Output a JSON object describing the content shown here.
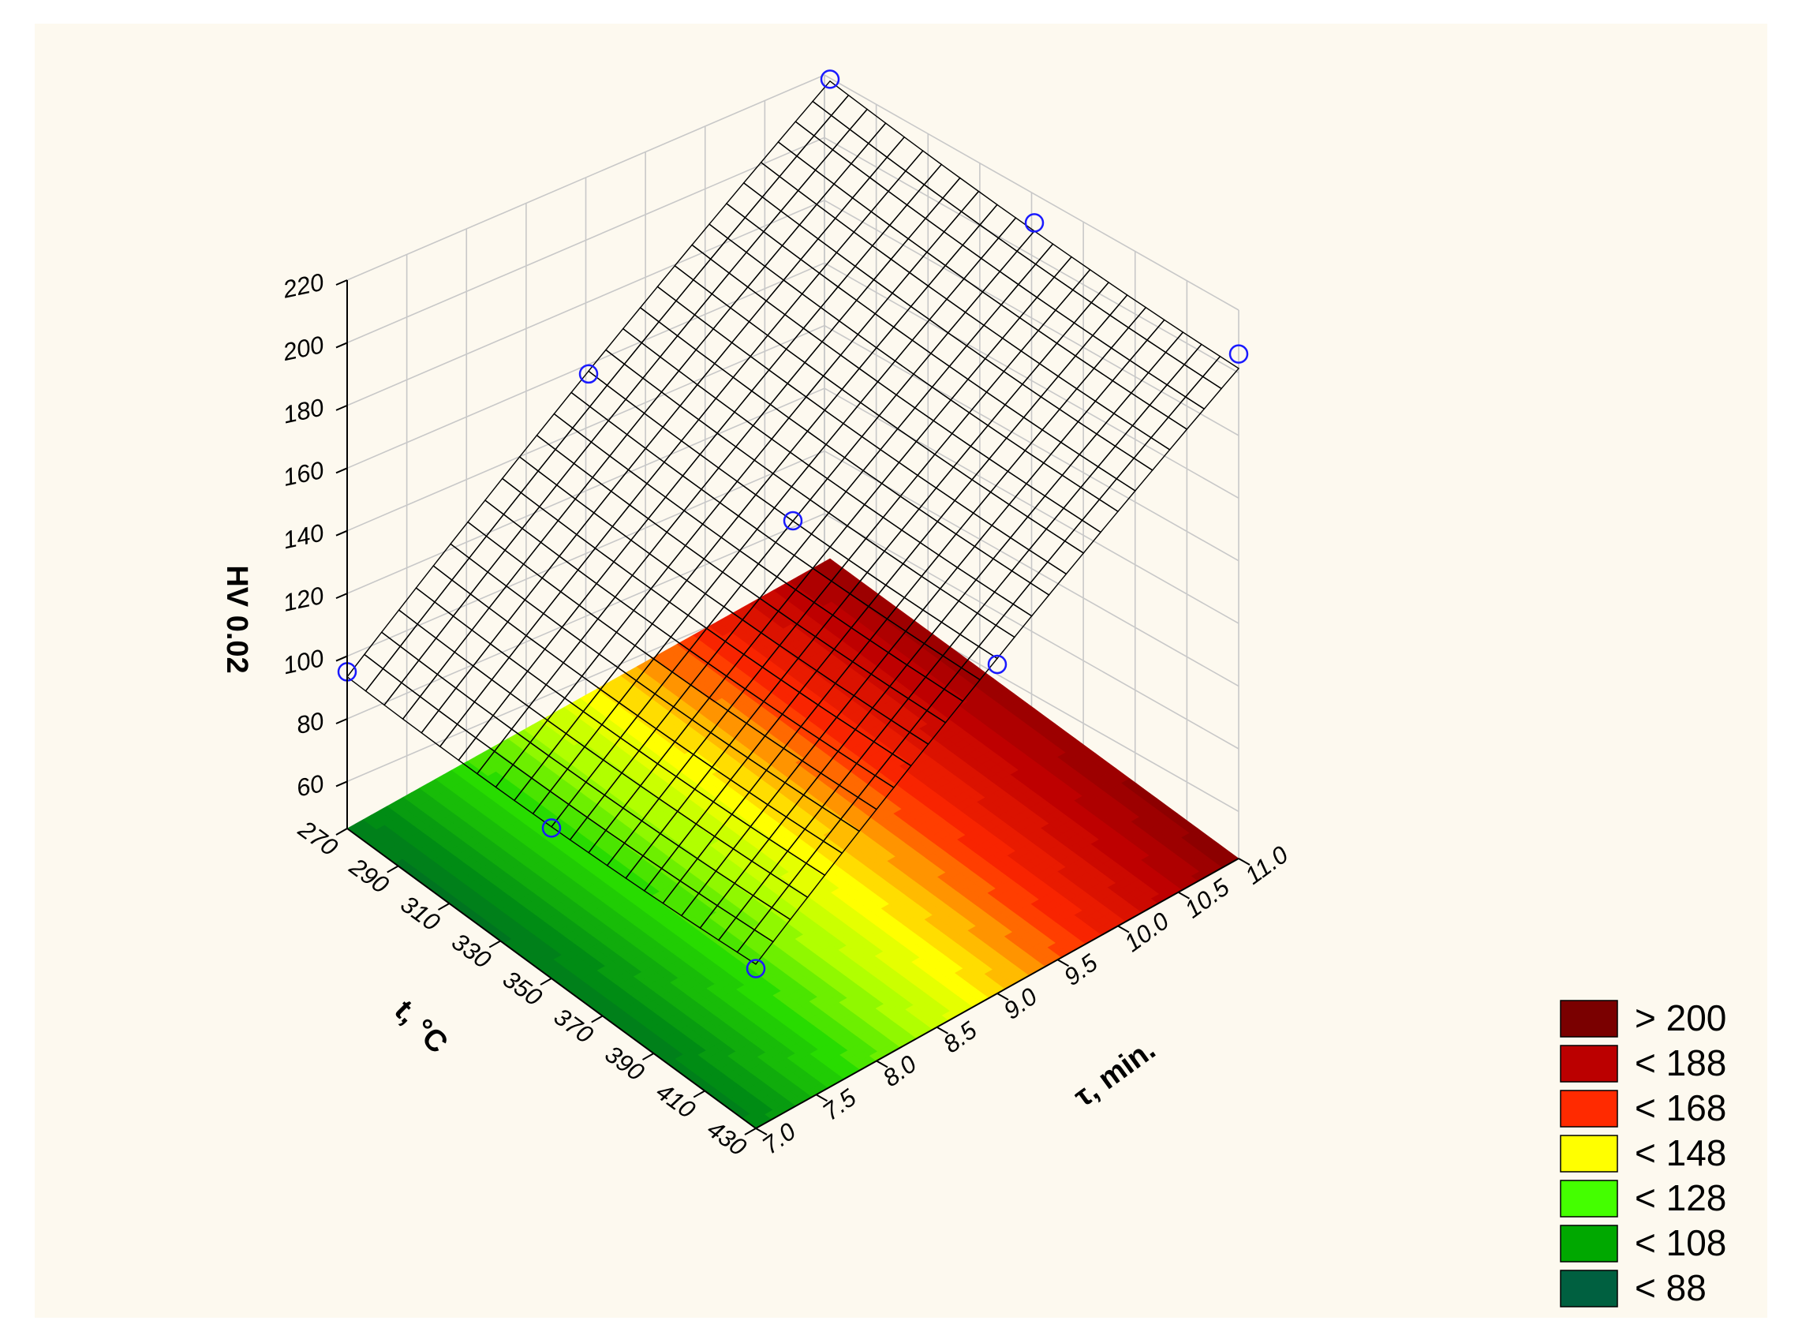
{
  "chart_data": {
    "type": "surface3d",
    "title": "",
    "zlabel": "HV 0.02",
    "xlabel": "t, °C",
    "ylabel": "τ, min.",
    "z_ticks": [
      60,
      80,
      100,
      120,
      140,
      160,
      180,
      200,
      220
    ],
    "x_ticks": [
      270,
      290,
      310,
      330,
      350,
      370,
      390,
      410,
      430
    ],
    "y_ticks": [
      "7.0",
      "7.5",
      "8.0",
      "8.5",
      "9.0",
      "9.5",
      "10.0",
      "10.5",
      "11.0"
    ],
    "zlim": [
      45,
      220
    ],
    "xlim": [
      270,
      430
    ],
    "ylim": [
      7.0,
      11.0
    ],
    "grid": true,
    "legend_position": "bottom-right",
    "legend": [
      {
        "label": "> 200",
        "color": "#7a0000"
      },
      {
        "label": "< 188",
        "color": "#bb0000"
      },
      {
        "label": "< 168",
        "color": "#ff2a00"
      },
      {
        "label": "< 148",
        "color": "#ffff00"
      },
      {
        "label": "< 128",
        "color": "#44ff00"
      },
      {
        "label": "< 108",
        "color": "#00a800"
      },
      {
        "label": "< 88",
        "color": "#006040"
      }
    ],
    "points": [
      {
        "t": 270,
        "tau": 7.0,
        "hv": 95
      },
      {
        "t": 270,
        "tau": 9.0,
        "hv": 147
      },
      {
        "t": 270,
        "tau": 11.0,
        "hv": 198
      },
      {
        "t": 350,
        "tau": 7.0,
        "hv": 93
      },
      {
        "t": 350,
        "tau": 9.0,
        "hv": 148
      },
      {
        "t": 350,
        "tau": 11.0,
        "hv": 200
      },
      {
        "t": 430,
        "tau": 7.0,
        "hv": 96
      },
      {
        "t": 430,
        "tau": 9.0,
        "hv": 150
      },
      {
        "t": 430,
        "tau": 11.0,
        "hv": 206
      }
    ],
    "surface_model": "hv = 147.9 + 52 * (tau - 9)/2 + 2 * (t - 350)/80 + 2 * ((t - 350)/80)^2 - 2.5 * ((tau - 9)/2)^2"
  }
}
